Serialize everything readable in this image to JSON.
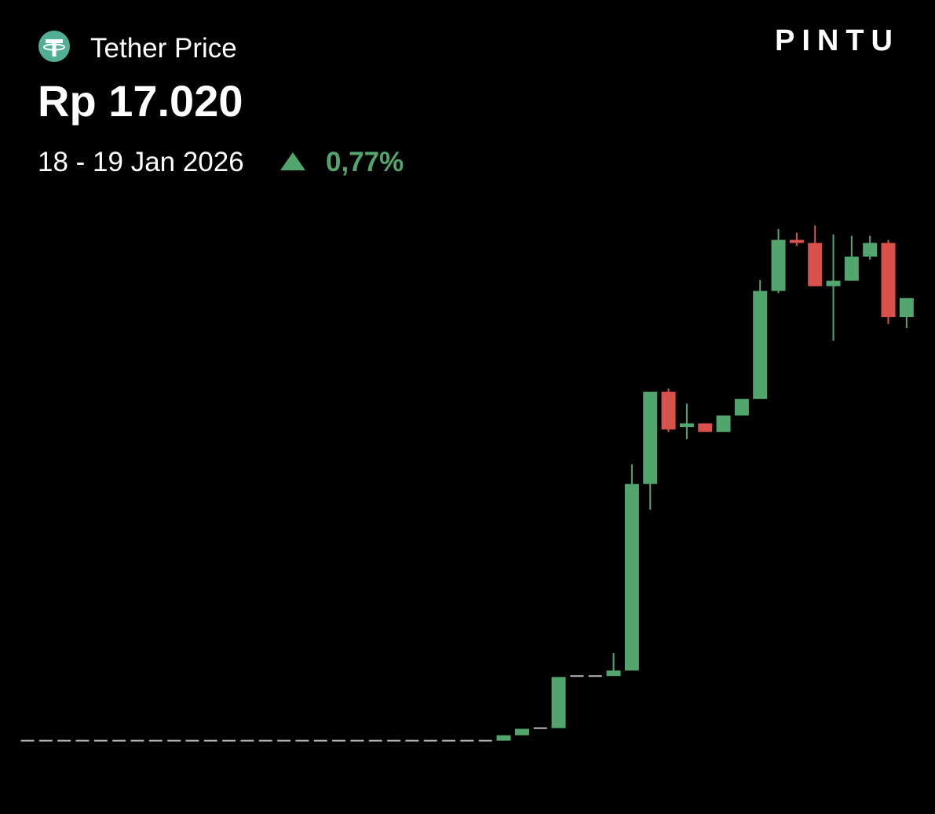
{
  "header": {
    "title": "Tether Price",
    "price": "Rp 17.020",
    "date_range": "18 - 19 Jan 2026",
    "change": "0,77%",
    "brand": "PINTU"
  },
  "chart_data": {
    "type": "candlestick",
    "up_color": "#52a56d",
    "down_color": "#d9514b",
    "flat_color": "#bdbdbd",
    "ylim": [
      16877,
      17043
    ],
    "open": [
      16890,
      16890,
      16890,
      16890,
      16890,
      16890,
      16890,
      16890,
      16890,
      16890,
      16890,
      16890,
      16890,
      16890,
      16890,
      16890,
      16890,
      16890,
      16890,
      16890,
      16890,
      16890,
      16890,
      16890,
      16890,
      16890,
      16890,
      16891.6,
      16893.7,
      16893.7,
      16909.0,
      16909.0,
      16909.0,
      16910.6,
      16965.4,
      16992.5,
      16982.1,
      16983.2,
      16980.7,
      16985.5,
      16990.4,
      17022.1,
      17037.1,
      17036.2,
      17023.5,
      17025.1,
      17032.2,
      17036.2,
      17014.4
    ],
    "high": [
      16890,
      16890,
      16890,
      16890,
      16890,
      16890,
      16890,
      16890,
      16890,
      16890,
      16890,
      16890,
      16890,
      16890,
      16890,
      16890,
      16890,
      16890,
      16890,
      16890,
      16890,
      16890,
      16890,
      16890,
      16890,
      16890,
      16891.6,
      16893.5,
      16893.7,
      16908.7,
      16909.0,
      16909.0,
      16915.7,
      16971.2,
      16992.5,
      16993.4,
      16989.0,
      16983.2,
      16985.5,
      16990.4,
      17025.3,
      17040.3,
      17039.2,
      17041.3,
      17038.7,
      17038.3,
      17038.3,
      17037.1,
      17020.0
    ],
    "low": [
      16890,
      16890,
      16890,
      16890,
      16890,
      16890,
      16890,
      16890,
      16890,
      16890,
      16890,
      16890,
      16890,
      16890,
      16890,
      16890,
      16890,
      16890,
      16890,
      16890,
      16890,
      16890,
      16890,
      16890,
      16890,
      16890,
      16890,
      16891.6,
      16893.7,
      16893.7,
      16909.0,
      16909.0,
      16909.0,
      16910.6,
      16957.8,
      16980.7,
      16978.6,
      16980.7,
      16980.7,
      16985.5,
      16990.4,
      17021.4,
      17035.3,
      17023.5,
      17007.5,
      17025.1,
      17031.3,
      17012.4,
      17011.2
    ],
    "close": [
      16890,
      16890,
      16890,
      16890,
      16890,
      16890,
      16890,
      16890,
      16890,
      16890,
      16890,
      16890,
      16890,
      16890,
      16890,
      16890,
      16890,
      16890,
      16890,
      16890,
      16890,
      16890,
      16890,
      16890,
      16890,
      16890,
      16891.6,
      16893.5,
      16893.7,
      16908.7,
      16909.0,
      16909.0,
      16910.6,
      16965.4,
      16992.5,
      16981.4,
      16983.2,
      16980.7,
      16985.5,
      16990.4,
      17022.1,
      17037.1,
      17036.2,
      17023.5,
      17025.1,
      17032.2,
      17036.2,
      17014.4,
      17020.0
    ]
  }
}
